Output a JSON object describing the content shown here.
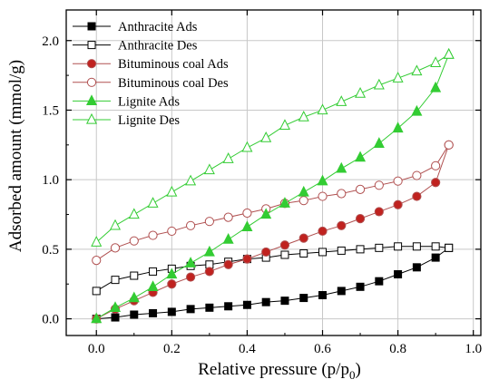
{
  "chart_data": {
    "type": "line",
    "xlabel": "Relative pressure (p/p",
    "xlabel_sub": "0",
    "xlabel_close": ")",
    "ylabel": "Adsorbed amount (mmol/g)",
    "xlim": [
      -0.08,
      1.02
    ],
    "ylim": [
      -0.12,
      2.22
    ],
    "x_ticks": [
      0.0,
      0.2,
      0.4,
      0.6,
      0.8,
      1.0
    ],
    "x_tick_labels": [
      "0.0",
      "0.2",
      "0.4",
      "0.6",
      "0.8",
      "1.0"
    ],
    "y_ticks": [
      0.0,
      0.5,
      1.0,
      1.5,
      2.0
    ],
    "y_tick_labels": [
      "0.0",
      "0.5",
      "1.0",
      "1.5",
      "2.0"
    ],
    "grid": true,
    "legend_position": "top-left",
    "series": [
      {
        "name": "Anthracite Ads",
        "color": "#000000",
        "marker": "square",
        "filled": true,
        "x": [
          0.0,
          0.05,
          0.1,
          0.15,
          0.2,
          0.25,
          0.3,
          0.35,
          0.4,
          0.45,
          0.5,
          0.55,
          0.6,
          0.65,
          0.7,
          0.75,
          0.8,
          0.85,
          0.9,
          0.935
        ],
        "y": [
          0.0,
          0.01,
          0.03,
          0.04,
          0.05,
          0.07,
          0.08,
          0.09,
          0.1,
          0.12,
          0.13,
          0.15,
          0.17,
          0.2,
          0.23,
          0.27,
          0.32,
          0.37,
          0.44,
          0.51
        ]
      },
      {
        "name": "Anthracite Des",
        "color": "#000000",
        "marker": "square",
        "filled": false,
        "x": [
          0.935,
          0.9,
          0.85,
          0.8,
          0.75,
          0.7,
          0.65,
          0.6,
          0.55,
          0.5,
          0.45,
          0.4,
          0.35,
          0.3,
          0.25,
          0.2,
          0.15,
          0.1,
          0.05,
          0.0
        ],
        "y": [
          0.51,
          0.52,
          0.52,
          0.52,
          0.51,
          0.5,
          0.49,
          0.48,
          0.47,
          0.46,
          0.44,
          0.43,
          0.41,
          0.39,
          0.38,
          0.36,
          0.34,
          0.31,
          0.28,
          0.2
        ]
      },
      {
        "name": "Bituminous coal Ads",
        "color": "#c0221f",
        "stroke": "#b05050",
        "marker": "circle",
        "filled": true,
        "x": [
          0.0,
          0.05,
          0.1,
          0.15,
          0.2,
          0.25,
          0.3,
          0.35,
          0.4,
          0.45,
          0.5,
          0.55,
          0.6,
          0.65,
          0.7,
          0.75,
          0.8,
          0.85,
          0.9,
          0.935
        ],
        "y": [
          0.0,
          0.07,
          0.13,
          0.19,
          0.25,
          0.3,
          0.34,
          0.39,
          0.43,
          0.48,
          0.53,
          0.58,
          0.63,
          0.67,
          0.72,
          0.77,
          0.82,
          0.88,
          0.98,
          1.25
        ]
      },
      {
        "name": "Bituminous coal Des",
        "color": "#c0221f",
        "stroke": "#b05050",
        "marker": "circle",
        "filled": false,
        "x": [
          0.935,
          0.9,
          0.85,
          0.8,
          0.75,
          0.7,
          0.65,
          0.6,
          0.55,
          0.5,
          0.45,
          0.4,
          0.35,
          0.3,
          0.25,
          0.2,
          0.15,
          0.1,
          0.05,
          0.0
        ],
        "y": [
          1.25,
          1.1,
          1.03,
          0.99,
          0.96,
          0.93,
          0.9,
          0.88,
          0.85,
          0.83,
          0.79,
          0.76,
          0.73,
          0.7,
          0.67,
          0.63,
          0.6,
          0.56,
          0.51,
          0.42
        ]
      },
      {
        "name": "Lignite Ads",
        "color": "#33cc33",
        "stroke": "#33cc33",
        "marker": "triangle",
        "filled": true,
        "x": [
          0.0,
          0.05,
          0.1,
          0.15,
          0.2,
          0.25,
          0.3,
          0.35,
          0.4,
          0.45,
          0.5,
          0.55,
          0.6,
          0.65,
          0.7,
          0.75,
          0.8,
          0.85,
          0.9,
          0.935
        ],
        "y": [
          0.0,
          0.08,
          0.15,
          0.23,
          0.32,
          0.4,
          0.48,
          0.57,
          0.66,
          0.75,
          0.83,
          0.91,
          0.99,
          1.08,
          1.16,
          1.26,
          1.37,
          1.49,
          1.66,
          1.9
        ]
      },
      {
        "name": "Lignite Des",
        "color": "#33cc33",
        "stroke": "#33cc33",
        "marker": "triangle",
        "filled": false,
        "x": [
          0.935,
          0.9,
          0.85,
          0.8,
          0.75,
          0.7,
          0.65,
          0.6,
          0.55,
          0.5,
          0.45,
          0.4,
          0.35,
          0.3,
          0.25,
          0.2,
          0.15,
          0.1,
          0.05,
          0.0
        ],
        "y": [
          1.9,
          1.84,
          1.78,
          1.73,
          1.68,
          1.62,
          1.56,
          1.5,
          1.45,
          1.39,
          1.3,
          1.23,
          1.15,
          1.07,
          0.99,
          0.91,
          0.83,
          0.75,
          0.67,
          0.55
        ]
      }
    ]
  }
}
